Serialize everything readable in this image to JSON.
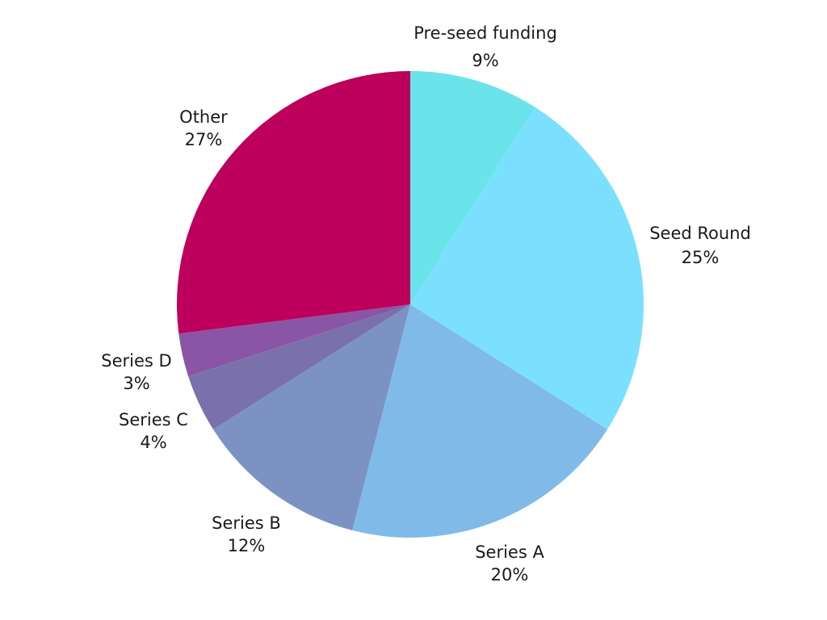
{
  "chart_data": {
    "type": "pie",
    "title": "",
    "slices": [
      {
        "label": "Pre-seed funding",
        "value": 9,
        "value_label": "9%",
        "color": "#6AE4EA"
      },
      {
        "label": "Seed Round",
        "value": 25,
        "value_label": "25%",
        "color": "#7BE0FD"
      },
      {
        "label": "Series A",
        "value": 20,
        "value_label": "20%",
        "color": "#80BAE8"
      },
      {
        "label": "Series B",
        "value": 12,
        "value_label": "12%",
        "color": "#7B92C3"
      },
      {
        "label": "Series C",
        "value": 4,
        "value_label": "4%",
        "color": "#7A70AC"
      },
      {
        "label": "Series D",
        "value": 3,
        "value_label": "3%",
        "color": "#8B55A5"
      },
      {
        "label": "Other",
        "value": 27,
        "value_label": "27%",
        "color": "#BC005C"
      }
    ],
    "start_angle_deg": 0,
    "direction": "clockwise",
    "legend": "none",
    "labels": "outside"
  }
}
